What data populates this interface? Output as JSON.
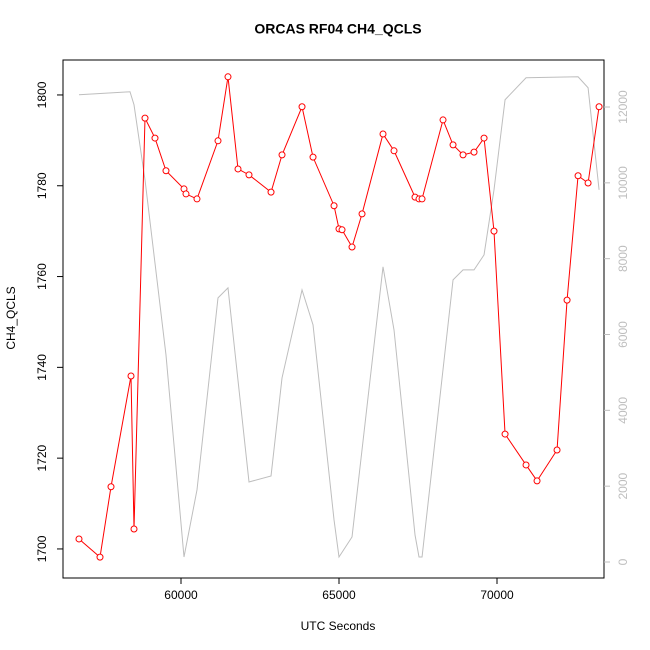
{
  "chart_data": {
    "type": "line",
    "title": "ORCAS RF04 CH4_QCLS",
    "xlabel": "UTC Seconds",
    "ylabel": "CH4_QCLS",
    "xlim": [
      56266,
      73386
    ],
    "xticks": [
      60000,
      65000,
      70000
    ],
    "ylim": [
      1693.6,
      1807.7
    ],
    "yticks": [
      1700,
      1720,
      1740,
      1760,
      1780,
      1800
    ],
    "y2lim": [
      -422,
      13240
    ],
    "y2ticks": [
      0,
      2000,
      4000,
      6000,
      8000,
      10000,
      12000
    ],
    "series": [
      {
        "color": "#ff0000",
        "marker": "circle",
        "x": [
          56772,
          57437,
          57785,
          58418,
          58513,
          58861,
          59177,
          59525,
          60095,
          60158,
          60506,
          61171,
          61487,
          61804,
          62152,
          62849,
          63197,
          63830,
          64178,
          64843,
          65000,
          65096,
          65412,
          65729,
          66393,
          66741,
          67406,
          67532,
          67628,
          68292,
          68609,
          68925,
          69273,
          69590,
          69905,
          70255,
          70919,
          71267,
          71900,
          72217,
          72565,
          72882,
          73230
        ],
        "values": [
          1702.2,
          1698.2,
          1713.7,
          1738.1,
          1704.4,
          1794.9,
          1790.5,
          1783.3,
          1779.3,
          1778.2,
          1777.1,
          1789.9,
          1804.0,
          1783.7,
          1782.4,
          1778.6,
          1786.8,
          1797.4,
          1786.3,
          1775.6,
          1770.5,
          1770.3,
          1766.5,
          1773.8,
          1791.4,
          1787.7,
          1777.5,
          1777.1,
          1777.1,
          1794.5,
          1789.0,
          1786.8,
          1787.4,
          1790.5,
          1770.0,
          1725.3,
          1718.5,
          1715.0,
          1721.8,
          1754.8,
          1782.2,
          1780.6,
          1797.4
        ]
      },
      {
        "color": "#bebebe",
        "axis": "y2",
        "x": [
          56772,
          58386,
          58513,
          58861,
          59525,
          60095,
          60506,
          61171,
          61487,
          62152,
          62849,
          63197,
          63830,
          64178,
          64843,
          65000,
          65412,
          66393,
          66741,
          67406,
          67532,
          67628,
          68609,
          68925,
          69273,
          69590,
          69905,
          70255,
          70919,
          72565,
          72882,
          73230
        ],
        "values": [
          12323,
          12402,
          12059,
          10080,
          5462,
          132,
          1900,
          6966,
          7230,
          2111,
          2269,
          4855,
          7177,
          6254,
          1108,
          132,
          660,
          7785,
          6122,
          712,
          132,
          132,
          7441,
          7705,
          7705,
          8101,
          9816,
          12191,
          12772,
          12798,
          12508,
          9816
        ]
      }
    ]
  }
}
